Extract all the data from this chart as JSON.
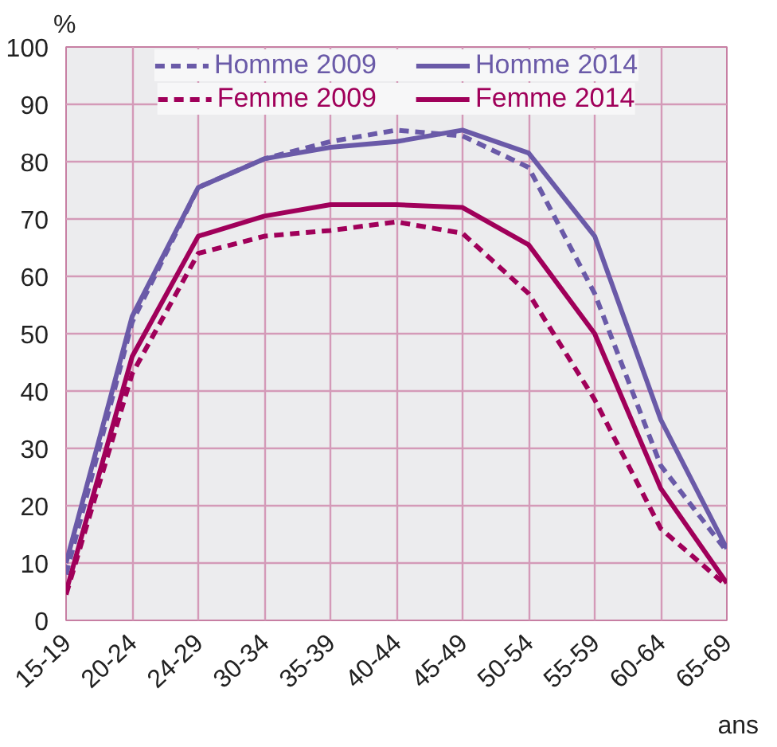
{
  "chart_data": {
    "type": "line",
    "xlabel": "ans",
    "ylabel": "%",
    "categories": [
      "15-19",
      "20-24",
      "24-29",
      "30-34",
      "35-39",
      "40-44",
      "45-49",
      "50-54",
      "55-59",
      "60-64",
      "65-69"
    ],
    "series": [
      {
        "name": "Homme 2009",
        "color": "#6a5aa8",
        "line_style": "dashed",
        "values": [
          8,
          52,
          75.5,
          80.5,
          83.5,
          85.5,
          84.5,
          79,
          57,
          27,
          12
        ]
      },
      {
        "name": "Femme 2009",
        "color": "#a0005a",
        "line_style": "dashed",
        "values": [
          4.5,
          43,
          64,
          67,
          68,
          69.5,
          67.5,
          57,
          38.5,
          16,
          6
        ]
      },
      {
        "name": "Homme 2014",
        "color": "#6a5aa8",
        "line_style": "solid",
        "values": [
          10,
          53,
          75.5,
          80.5,
          82.5,
          83.5,
          85.5,
          81.5,
          67,
          35,
          12.5
        ]
      },
      {
        "name": "Femme 2014",
        "color": "#a0005a",
        "line_style": "solid",
        "values": [
          5,
          46,
          67,
          70.5,
          72.5,
          72.5,
          72,
          65.5,
          50,
          23,
          6.5
        ]
      }
    ],
    "ylim": [
      0,
      100
    ],
    "yticks": [
      0,
      10,
      20,
      30,
      40,
      50,
      60,
      70,
      80,
      90,
      100
    ],
    "grid": true,
    "legend": "top",
    "marker": "none"
  }
}
